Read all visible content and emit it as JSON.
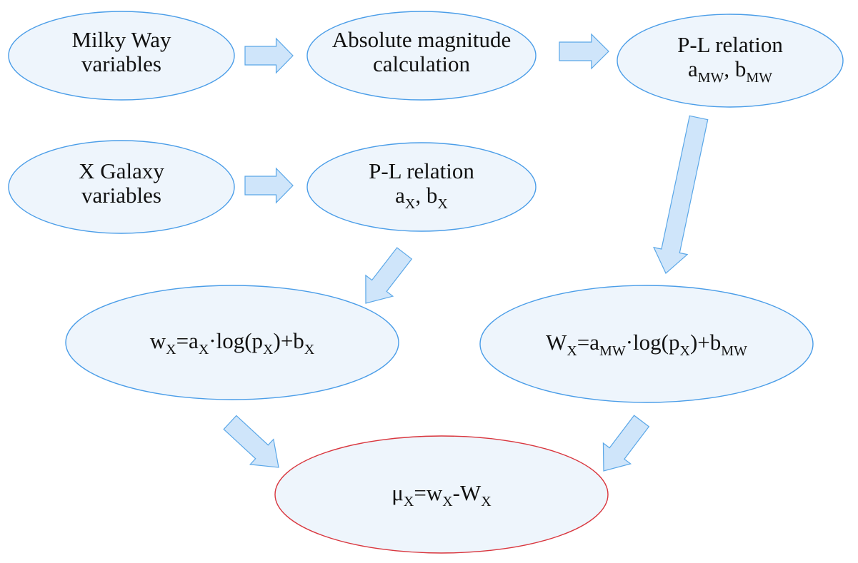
{
  "nodes": [
    {
      "lines": [
        [
          {
            "text": "Milky Way"
          }
        ],
        [
          {
            "text": "variables"
          }
        ]
      ]
    },
    {
      "lines": [
        [
          {
            "text": "Absolute magnitude"
          }
        ],
        [
          {
            "text": "calculation"
          }
        ]
      ]
    },
    {
      "lines": [
        [
          {
            "text": "P-L relation"
          }
        ],
        [
          {
            "text": "a"
          },
          {
            "sub": "MW"
          },
          {
            "text": ", b"
          },
          {
            "sub": "MW"
          }
        ]
      ]
    },
    {
      "lines": [
        [
          {
            "text": "X Galaxy"
          }
        ],
        [
          {
            "text": "variables"
          }
        ]
      ]
    },
    {
      "lines": [
        [
          {
            "text": "P-L relation"
          }
        ],
        [
          {
            "text": "a"
          },
          {
            "sub": "X"
          },
          {
            "text": ", b"
          },
          {
            "sub": "X"
          }
        ]
      ]
    },
    {
      "lines": [
        [
          {
            "text": "w"
          },
          {
            "sub": "X"
          },
          {
            "text": "=a"
          },
          {
            "sub": "X"
          },
          {
            "text": "·log(p"
          },
          {
            "sub": "X"
          },
          {
            "text": ")+b"
          },
          {
            "sub": "X"
          }
        ]
      ]
    },
    {
      "lines": [
        [
          {
            "text": "W"
          },
          {
            "sub": "X"
          },
          {
            "text": "=a"
          },
          {
            "sub": "MW"
          },
          {
            "text": "·log(p"
          },
          {
            "sub": "X"
          },
          {
            "text": ")+b"
          },
          {
            "sub": "MW"
          }
        ]
      ]
    },
    {
      "lines": [
        [
          {
            "text": "μ"
          },
          {
            "sub": "X"
          },
          {
            "text": "=w"
          },
          {
            "sub": "X"
          },
          {
            "text": "-W"
          },
          {
            "sub": "X"
          }
        ]
      ]
    }
  ]
}
